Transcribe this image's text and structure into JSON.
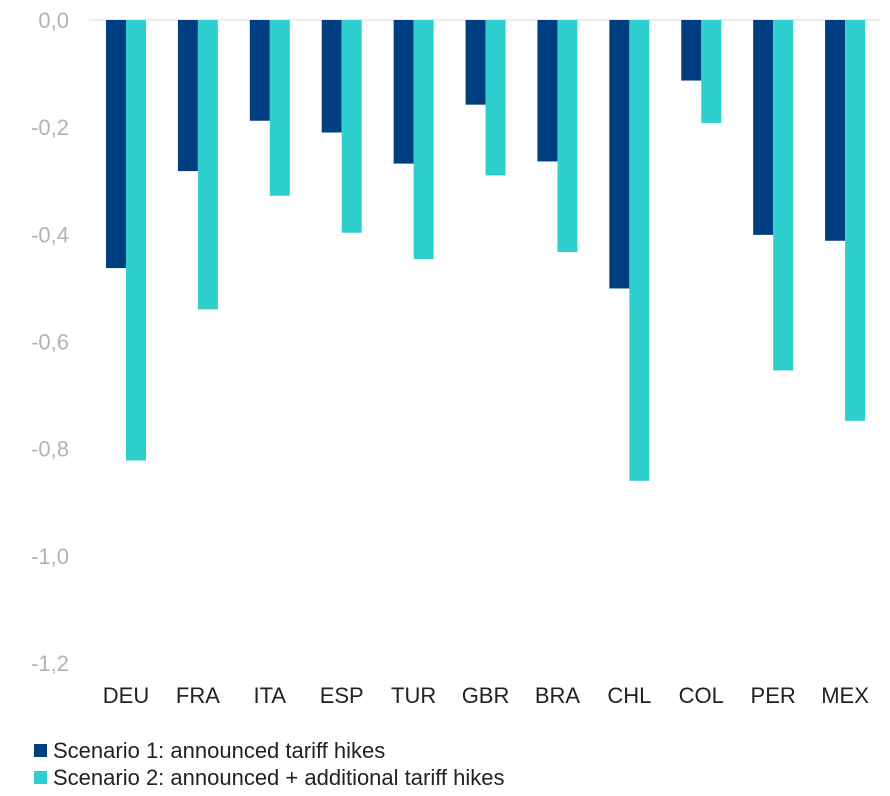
{
  "chart_data": {
    "type": "bar",
    "title": "",
    "xlabel": "",
    "ylabel": "",
    "categories": [
      "DEU",
      "FRA",
      "ITA",
      "ESP",
      "TUR",
      "GBR",
      "BRA",
      "CHL",
      "COL",
      "PER",
      "MEX"
    ],
    "series": [
      {
        "name": "Scenario 1: announced tariff hikes",
        "color": "#003f7f",
        "values": [
          -0.463,
          -0.282,
          -0.188,
          -0.21,
          -0.268,
          -0.158,
          -0.264,
          -0.501,
          -0.113,
          -0.401,
          -0.412
        ]
      },
      {
        "name": "Scenario 2: announced + additional tariff hikes",
        "color": "#2ecfcf",
        "values": [
          -0.822,
          -0.54,
          -0.328,
          -0.397,
          -0.446,
          -0.29,
          -0.433,
          -0.86,
          -0.192,
          -0.654,
          -0.748
        ]
      }
    ],
    "ylim": [
      -1.2,
      0.0
    ],
    "yticks": [
      0.0,
      -0.2,
      -0.4,
      -0.6,
      -0.8,
      -1.0,
      -1.2
    ],
    "ytick_labels": [
      "0,0",
      "-0,2",
      "-0,4",
      "-0,6",
      "-0,8",
      "-1,0",
      "-1,2"
    ],
    "grid": false,
    "legend_position": "bottom-left"
  }
}
